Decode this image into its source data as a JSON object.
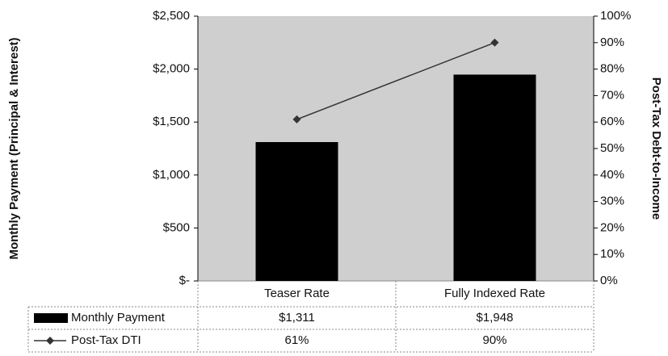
{
  "chart_data": {
    "type": "bar-line",
    "y_label": "Monthly Payment (Principal & Interest)",
    "y2_label": "Post-Tax Debt-to-Income",
    "categories": [
      "Teaser Rate",
      "Fully Indexed Rate"
    ],
    "series": [
      {
        "name": "Monthly Payment",
        "type": "bar",
        "color": "#000000",
        "values": [
          1311,
          1948
        ],
        "value_labels": [
          "$1,311",
          "$1,948"
        ]
      },
      {
        "name": "Post-Tax DTI",
        "type": "line",
        "axis": "y2",
        "color": "#333333",
        "values": [
          61,
          90
        ],
        "value_labels": [
          "61%",
          "90%"
        ]
      }
    ],
    "ylim": [
      0,
      2500
    ],
    "yticks": [
      {
        "value": 0,
        "label": "$-"
      },
      {
        "value": 500,
        "label": "$500"
      },
      {
        "value": 1000,
        "label": "$1,000"
      },
      {
        "value": 1500,
        "label": "$1,500"
      },
      {
        "value": 2000,
        "label": "$2,000"
      },
      {
        "value": 2500,
        "label": "$2,500"
      }
    ],
    "y2lim": [
      0,
      100
    ],
    "y2ticks": [
      {
        "value": 0,
        "label": "0%"
      },
      {
        "value": 10,
        "label": "10%"
      },
      {
        "value": 20,
        "label": "20%"
      },
      {
        "value": 30,
        "label": "30%"
      },
      {
        "value": 40,
        "label": "40%"
      },
      {
        "value": 50,
        "label": "50%"
      },
      {
        "value": 60,
        "label": "60%"
      },
      {
        "value": 70,
        "label": "70%"
      },
      {
        "value": 80,
        "label": "80%"
      },
      {
        "value": 90,
        "label": "90%"
      },
      {
        "value": 100,
        "label": "100%"
      }
    ],
    "plot_background": "#cfcfcf"
  }
}
